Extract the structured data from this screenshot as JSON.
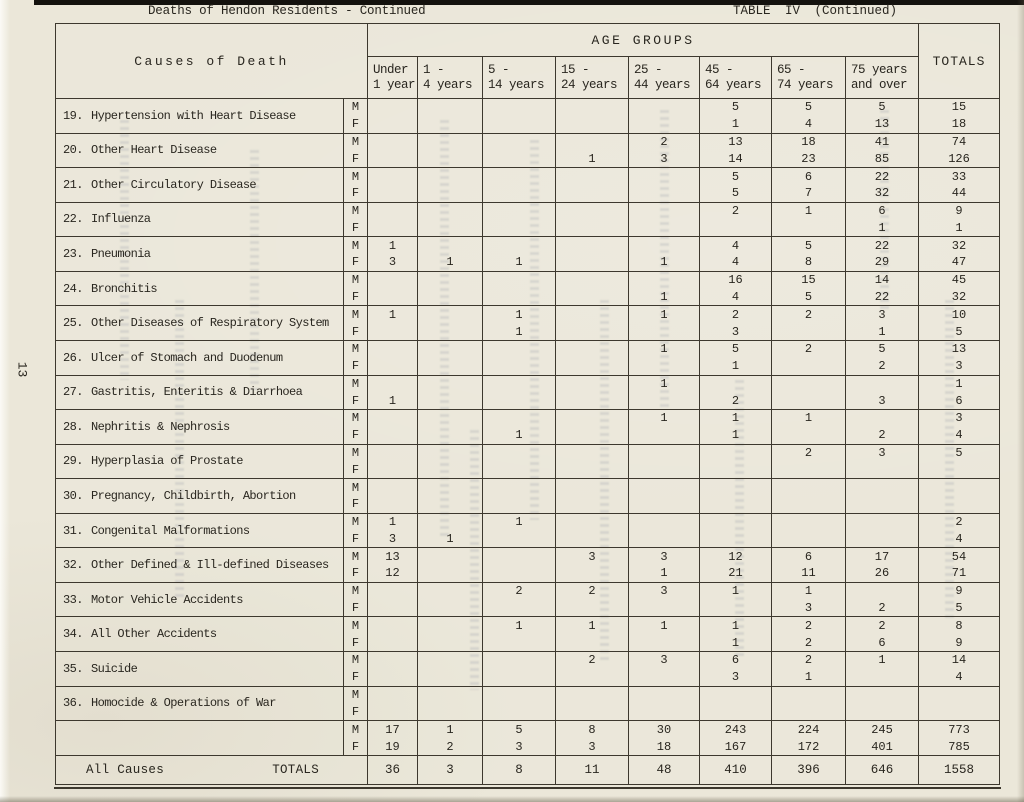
{
  "page": {
    "number_label": "13",
    "header_left": "Deaths of Hendon Residents - Continued",
    "header_right": "TABLE IV (Continued)"
  },
  "colors": {
    "paper": "#ebe7d9",
    "ink": "#29261f",
    "line": "#3d382e"
  },
  "table": {
    "corner_header": "Causes of Death",
    "age_groups_label": "AGE GROUPS",
    "totals_label": "TOTALS",
    "sex_labels": [
      "M",
      "F"
    ],
    "age_columns": [
      {
        "line1": "Under",
        "line2": "1 year"
      },
      {
        "line1": "1 -",
        "line2": "4 years"
      },
      {
        "line1": "5 -",
        "line2": "14 years"
      },
      {
        "line1": "15 -",
        "line2": "24 years"
      },
      {
        "line1": "25 -",
        "line2": "44 years"
      },
      {
        "line1": "45 -",
        "line2": "64 years"
      },
      {
        "line1": "65 -",
        "line2": "74 years"
      },
      {
        "line1": "75 years",
        "line2": "and over"
      }
    ],
    "rows": [
      {
        "num": "19.",
        "cause": "Hypertension with Heart Disease",
        "M": [
          "",
          "",
          "",
          "",
          "",
          "5",
          "5",
          "5",
          "15"
        ],
        "F": [
          "",
          "",
          "",
          "",
          "",
          "1",
          "4",
          "13",
          "18"
        ]
      },
      {
        "num": "20.",
        "cause": "Other Heart Disease",
        "M": [
          "",
          "",
          "",
          "",
          "2",
          "13",
          "18",
          "41",
          "74"
        ],
        "F": [
          "",
          "",
          "",
          "1",
          "3",
          "14",
          "23",
          "85",
          "126"
        ]
      },
      {
        "num": "21.",
        "cause": "Other Circulatory Disease",
        "M": [
          "",
          "",
          "",
          "",
          "",
          "5",
          "6",
          "22",
          "33"
        ],
        "F": [
          "",
          "",
          "",
          "",
          "",
          "5",
          "7",
          "32",
          "44"
        ]
      },
      {
        "num": "22.",
        "cause": "Influenza",
        "M": [
          "",
          "",
          "",
          "",
          "",
          "2",
          "1",
          "6",
          "9"
        ],
        "F": [
          "",
          "",
          "",
          "",
          "",
          "",
          "",
          "1",
          "1"
        ]
      },
      {
        "num": "23.",
        "cause": "Pneumonia",
        "M": [
          "1",
          "",
          "",
          "",
          "",
          "4",
          "5",
          "22",
          "32"
        ],
        "F": [
          "3",
          "1",
          "1",
          "",
          "1",
          "4",
          "8",
          "29",
          "47"
        ]
      },
      {
        "num": "24.",
        "cause": "Bronchitis",
        "M": [
          "",
          "",
          "",
          "",
          "",
          "16",
          "15",
          "14",
          "45"
        ],
        "F": [
          "",
          "",
          "",
          "",
          "1",
          "4",
          "5",
          "22",
          "32"
        ]
      },
      {
        "num": "25.",
        "cause": "Other Diseases of Respiratory System",
        "M": [
          "1",
          "",
          "1",
          "",
          "1",
          "2",
          "2",
          "3",
          "10"
        ],
        "F": [
          "",
          "",
          "1",
          "",
          "",
          "3",
          "",
          "1",
          "5"
        ]
      },
      {
        "num": "26.",
        "cause": "Ulcer of Stomach and Duodenum",
        "M": [
          "",
          "",
          "",
          "",
          "1",
          "5",
          "2",
          "5",
          "13"
        ],
        "F": [
          "",
          "",
          "",
          "",
          "",
          "1",
          "",
          "2",
          "3"
        ]
      },
      {
        "num": "27.",
        "cause": "Gastritis, Enteritis & Diarrhoea",
        "M": [
          "",
          "",
          "",
          "",
          "1",
          "",
          "",
          "",
          "1"
        ],
        "F": [
          "1",
          "",
          "",
          "",
          "",
          "2",
          "",
          "3",
          "6"
        ]
      },
      {
        "num": "28.",
        "cause": "Nephritis & Nephrosis",
        "M": [
          "",
          "",
          "",
          "",
          "1",
          "1",
          "1",
          "",
          "3"
        ],
        "F": [
          "",
          "",
          "1",
          "",
          "",
          "1",
          "",
          "2",
          "4"
        ]
      },
      {
        "num": "29.",
        "cause": "Hyperplasia of Prostate",
        "M": [
          "",
          "",
          "",
          "",
          "",
          "",
          "2",
          "3",
          "5"
        ],
        "F": [
          "",
          "",
          "",
          "",
          "",
          "",
          "",
          "",
          ""
        ]
      },
      {
        "num": "30.",
        "cause": "Pregnancy, Childbirth, Abortion",
        "M": [
          "",
          "",
          "",
          "",
          "",
          "",
          "",
          "",
          ""
        ],
        "F": [
          "",
          "",
          "",
          "",
          "",
          "",
          "",
          "",
          ""
        ]
      },
      {
        "num": "31.",
        "cause": "Congenital Malformations",
        "M": [
          "1",
          "",
          "1",
          "",
          "",
          "",
          "",
          "",
          "2"
        ],
        "F": [
          "3",
          "1",
          "",
          "",
          "",
          "",
          "",
          "",
          "4"
        ]
      },
      {
        "num": "32.",
        "cause": "Other Defined & Ill-defined Diseases",
        "M": [
          "13",
          "",
          "",
          "3",
          "3",
          "12",
          "6",
          "17",
          "54"
        ],
        "F": [
          "12",
          "",
          "",
          "",
          "1",
          "21",
          "11",
          "26",
          "71"
        ]
      },
      {
        "num": "33.",
        "cause": "Motor Vehicle Accidents",
        "M": [
          "",
          "",
          "2",
          "2",
          "3",
          "1",
          "1",
          "",
          "9"
        ],
        "F": [
          "",
          "",
          "",
          "",
          "",
          "",
          "3",
          "2",
          "5"
        ]
      },
      {
        "num": "34.",
        "cause": "All Other Accidents",
        "M": [
          "",
          "",
          "1",
          "1",
          "1",
          "1",
          "2",
          "2",
          "8"
        ],
        "F": [
          "",
          "",
          "",
          "",
          "",
          "1",
          "2",
          "6",
          "9"
        ]
      },
      {
        "num": "35.",
        "cause": "Suicide",
        "M": [
          "",
          "",
          "",
          "2",
          "3",
          "6",
          "2",
          "1",
          "14"
        ],
        "F": [
          "",
          "",
          "",
          "",
          "",
          "3",
          "1",
          "",
          "4"
        ]
      },
      {
        "num": "36.",
        "cause": "Homocide & Operations of War",
        "M": [
          "",
          "",
          "",
          "",
          "",
          "",
          "",
          "",
          ""
        ],
        "F": [
          "",
          "",
          "",
          "",
          "",
          "",
          "",
          "",
          ""
        ]
      }
    ],
    "grand_totals": {
      "M": [
        "17",
        "1",
        "5",
        "8",
        "30",
        "243",
        "224",
        "245",
        "773"
      ],
      "F": [
        "19",
        "2",
        "3",
        "3",
        "18",
        "167",
        "172",
        "401",
        "785"
      ]
    },
    "all_causes_row": {
      "label": "All Causes",
      "sublabel": "TOTALS",
      "values": [
        "36",
        "3",
        "8",
        "11",
        "48",
        "410",
        "396",
        "646",
        "1558"
      ]
    }
  }
}
